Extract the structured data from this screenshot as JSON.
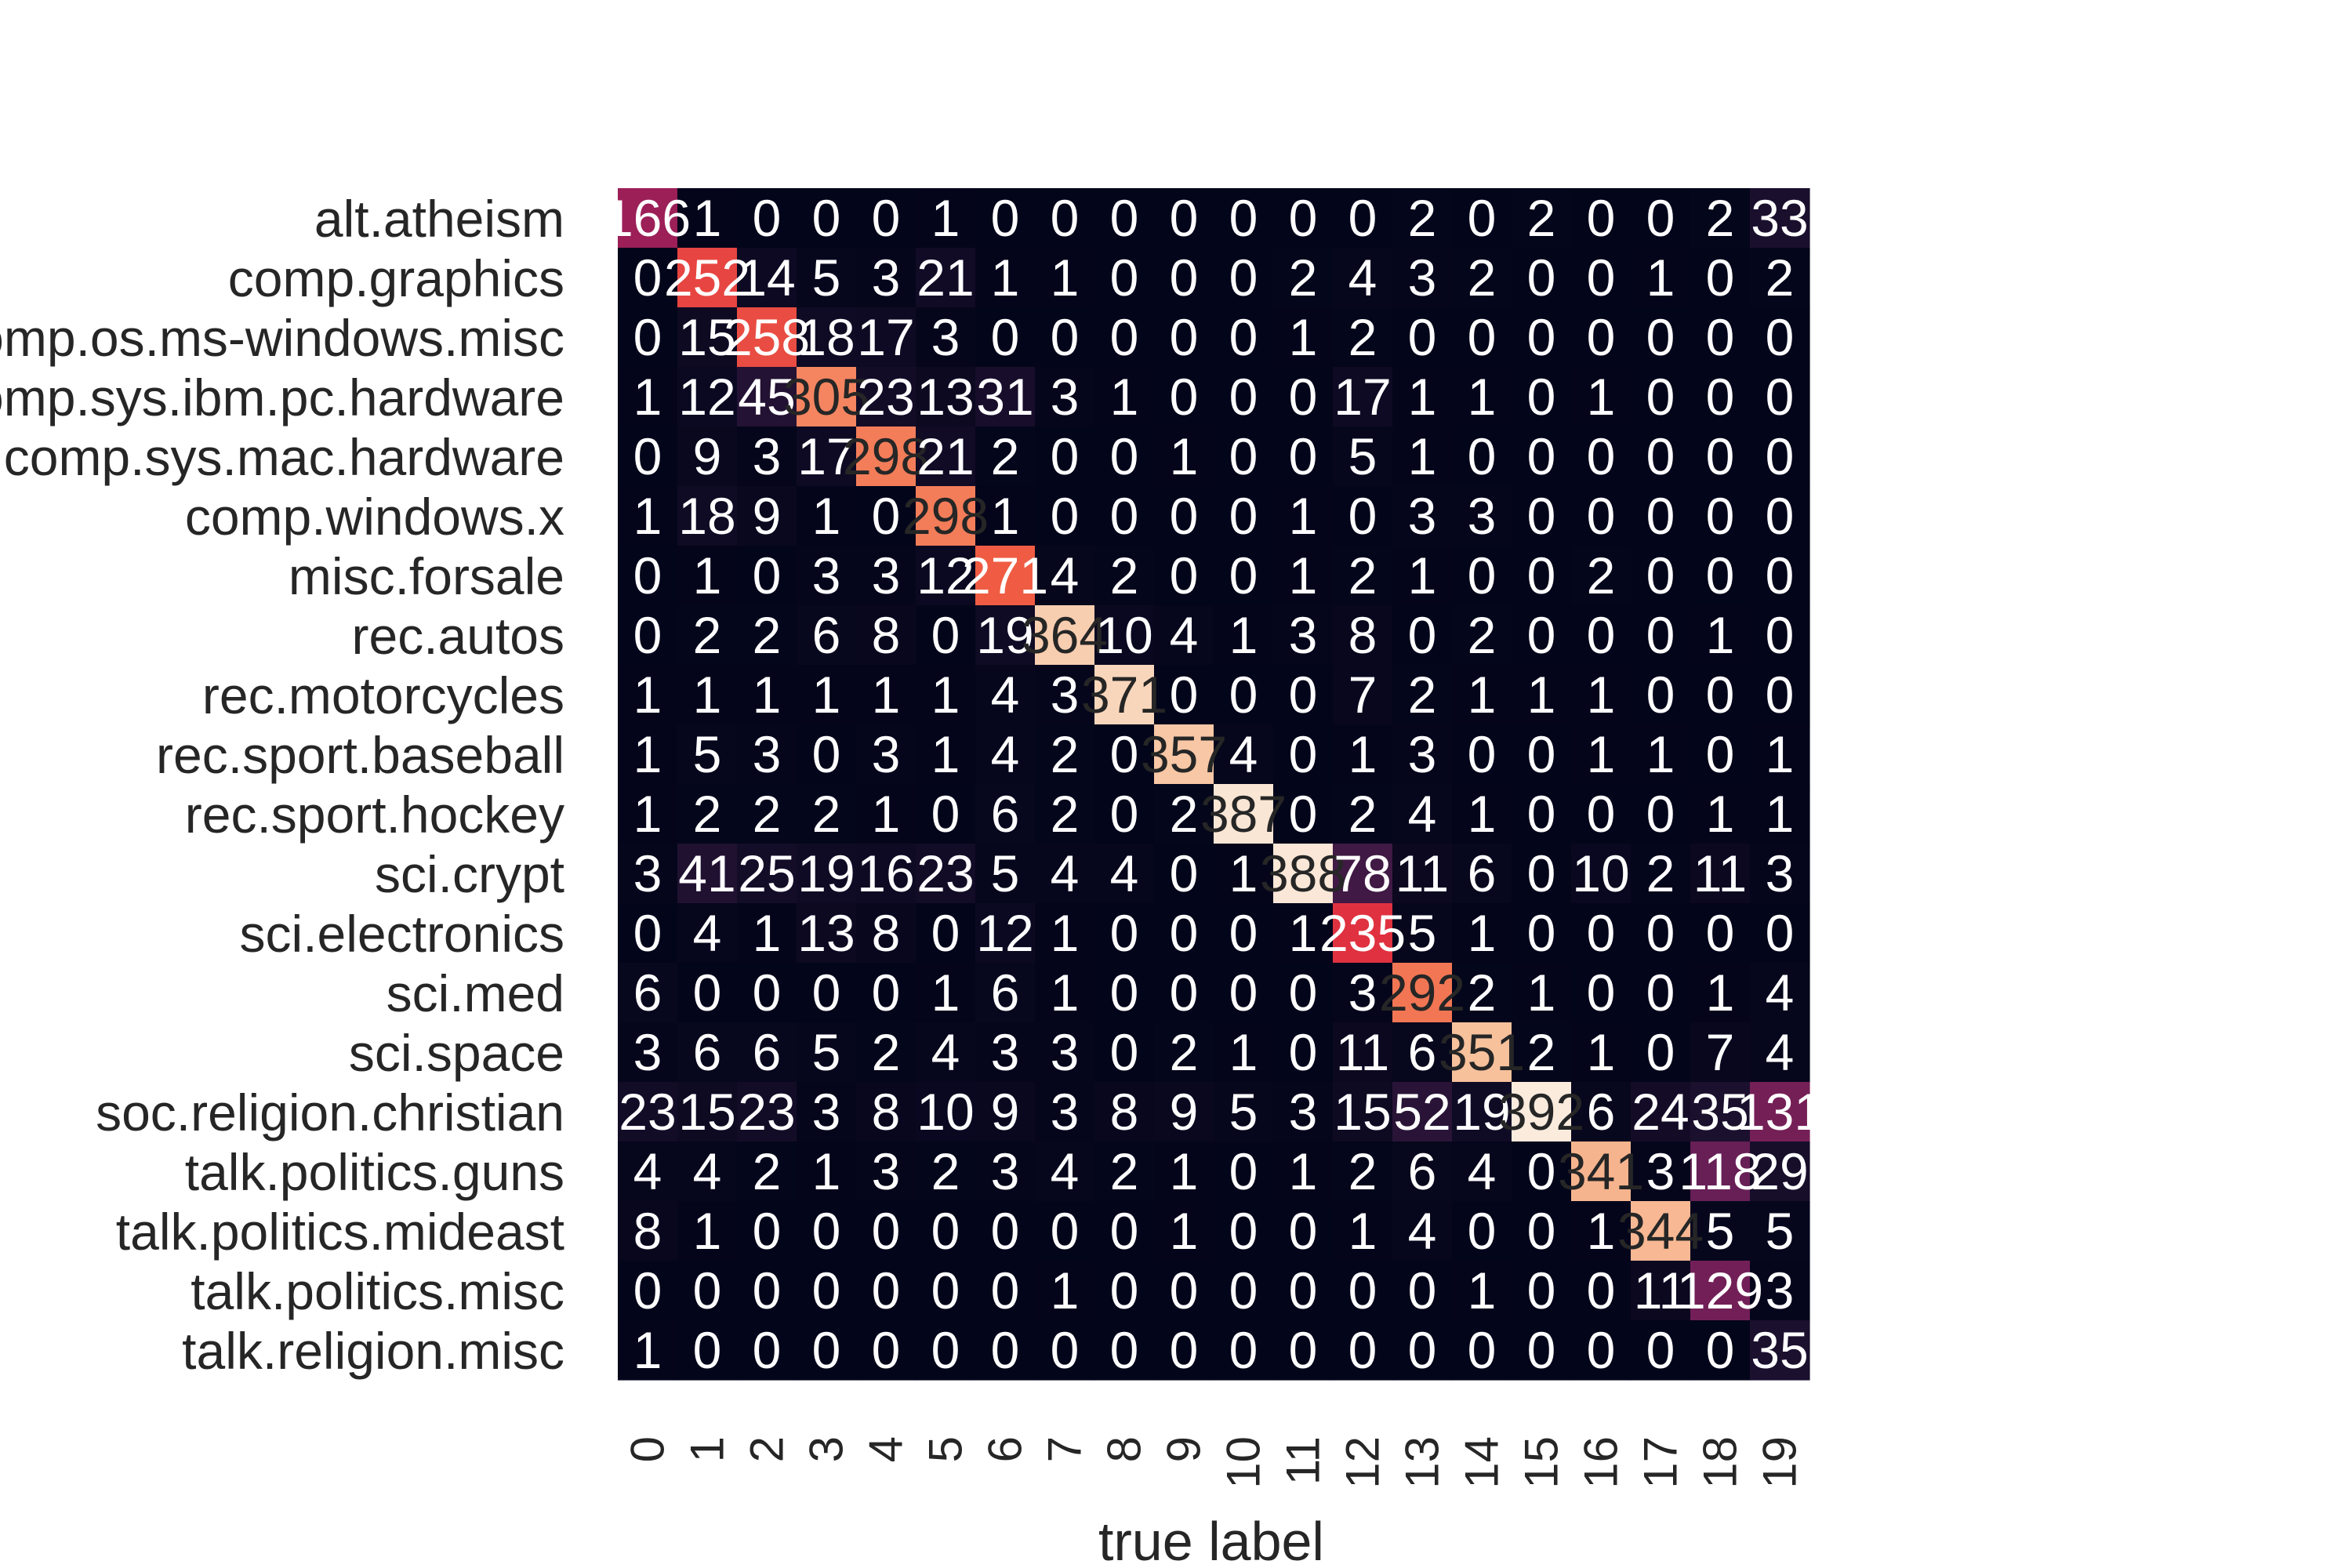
{
  "chart_data": {
    "type": "heatmap",
    "title": "",
    "xlabel": "true label",
    "ylabel": "",
    "x_tick_labels": [
      "0",
      "1",
      "2",
      "3",
      "4",
      "5",
      "6",
      "7",
      "8",
      "9",
      "10",
      "11",
      "12",
      "13",
      "14",
      "15",
      "16",
      "17",
      "18",
      "19"
    ],
    "y_tick_labels": [
      "alt.atheism",
      "comp.graphics",
      "comp.os.ms-windows.misc",
      "comp.sys.ibm.pc.hardware",
      "comp.sys.mac.hardware",
      "comp.windows.x",
      "misc.forsale",
      "rec.autos",
      "rec.motorcycles",
      "rec.sport.baseball",
      "rec.sport.hockey",
      "sci.crypt",
      "sci.electronics",
      "sci.med",
      "sci.space",
      "soc.religion.christian",
      "talk.politics.guns",
      "talk.politics.mideast",
      "talk.politics.misc",
      "talk.religion.misc"
    ],
    "values": [
      [
        166,
        1,
        0,
        0,
        0,
        1,
        0,
        0,
        0,
        0,
        0,
        0,
        0,
        2,
        0,
        2,
        0,
        0,
        2,
        33
      ],
      [
        0,
        252,
        14,
        5,
        3,
        21,
        1,
        1,
        0,
        0,
        0,
        2,
        4,
        3,
        2,
        0,
        0,
        1,
        0,
        2
      ],
      [
        0,
        15,
        258,
        18,
        17,
        3,
        0,
        0,
        0,
        0,
        0,
        1,
        2,
        0,
        0,
        0,
        0,
        0,
        0,
        0
      ],
      [
        1,
        12,
        45,
        305,
        23,
        13,
        31,
        3,
        1,
        0,
        0,
        0,
        17,
        1,
        1,
        0,
        1,
        0,
        0,
        0
      ],
      [
        0,
        9,
        3,
        17,
        298,
        21,
        2,
        0,
        0,
        1,
        0,
        0,
        5,
        1,
        0,
        0,
        0,
        0,
        0,
        0
      ],
      [
        1,
        18,
        9,
        1,
        0,
        298,
        1,
        0,
        0,
        0,
        0,
        1,
        0,
        3,
        3,
        0,
        0,
        0,
        0,
        0
      ],
      [
        0,
        1,
        0,
        3,
        3,
        12,
        271,
        4,
        2,
        0,
        0,
        1,
        2,
        1,
        0,
        0,
        2,
        0,
        0,
        0
      ],
      [
        0,
        2,
        2,
        6,
        8,
        0,
        19,
        364,
        10,
        4,
        1,
        3,
        8,
        0,
        2,
        0,
        0,
        0,
        1,
        0
      ],
      [
        1,
        1,
        1,
        1,
        1,
        1,
        4,
        3,
        371,
        0,
        0,
        0,
        7,
        2,
        1,
        1,
        1,
        0,
        0,
        0
      ],
      [
        1,
        5,
        3,
        0,
        3,
        1,
        4,
        2,
        0,
        357,
        4,
        0,
        1,
        3,
        0,
        0,
        1,
        1,
        0,
        1
      ],
      [
        1,
        2,
        2,
        2,
        1,
        0,
        6,
        2,
        0,
        2,
        387,
        0,
        2,
        4,
        1,
        0,
        0,
        0,
        1,
        1
      ],
      [
        3,
        41,
        25,
        19,
        16,
        23,
        5,
        4,
        4,
        0,
        1,
        388,
        78,
        11,
        6,
        0,
        10,
        2,
        11,
        3
      ],
      [
        0,
        4,
        1,
        13,
        8,
        0,
        12,
        1,
        0,
        0,
        0,
        1,
        235,
        5,
        1,
        0,
        0,
        0,
        0,
        0
      ],
      [
        6,
        0,
        0,
        0,
        0,
        1,
        6,
        1,
        0,
        0,
        0,
        0,
        3,
        292,
        2,
        1,
        0,
        0,
        1,
        4
      ],
      [
        3,
        6,
        6,
        5,
        2,
        4,
        3,
        3,
        0,
        2,
        1,
        0,
        11,
        6,
        351,
        2,
        1,
        0,
        7,
        4
      ],
      [
        23,
        15,
        23,
        3,
        8,
        10,
        9,
        3,
        8,
        9,
        5,
        3,
        15,
        52,
        19,
        392,
        6,
        24,
        35,
        131
      ],
      [
        4,
        4,
        2,
        1,
        3,
        2,
        3,
        4,
        2,
        1,
        0,
        1,
        2,
        6,
        4,
        0,
        341,
        3,
        118,
        29
      ],
      [
        8,
        1,
        0,
        0,
        0,
        0,
        0,
        0,
        0,
        1,
        0,
        0,
        1,
        4,
        0,
        0,
        1,
        344,
        5,
        5
      ],
      [
        0,
        0,
        0,
        0,
        0,
        0,
        0,
        1,
        0,
        0,
        0,
        0,
        0,
        0,
        1,
        0,
        0,
        11,
        129,
        3
      ],
      [
        1,
        0,
        0,
        0,
        0,
        0,
        0,
        0,
        0,
        0,
        0,
        0,
        0,
        0,
        0,
        0,
        0,
        0,
        0,
        35
      ]
    ],
    "vmin": 0,
    "vmax": 392,
    "colormap": "rocket",
    "colorbar": false,
    "grid": false
  }
}
